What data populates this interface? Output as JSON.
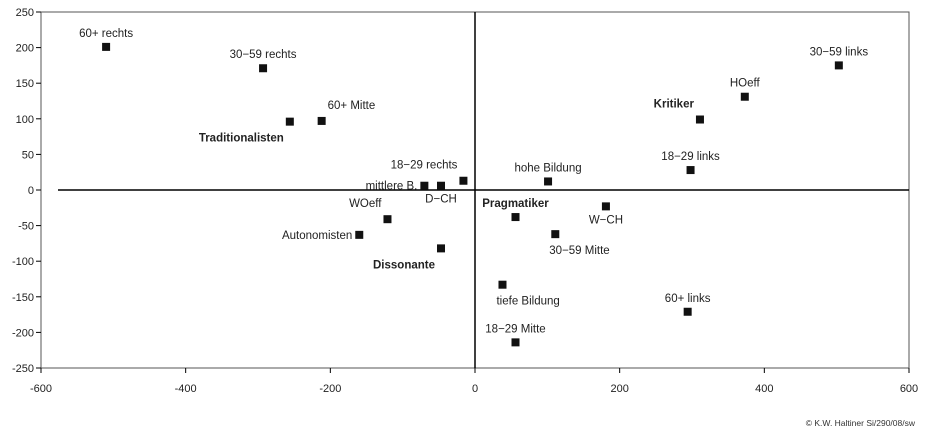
{
  "chart_data": {
    "type": "scatter",
    "title": "",
    "xlabel": "",
    "ylabel": "",
    "xlim": [
      -600,
      600
    ],
    "ylim": [
      -250,
      250
    ],
    "xticks": [
      -600,
      -400,
      -200,
      0,
      200,
      400,
      600
    ],
    "yticks": [
      250,
      200,
      150,
      100,
      50,
      0,
      -50,
      -100,
      -150,
      -200,
      -250
    ],
    "grid": false,
    "points": [
      {
        "label": "60+ rechts",
        "x": -510,
        "y": 201,
        "bold": false,
        "pos": "above"
      },
      {
        "label": "30−59 rechts",
        "x": -293,
        "y": 171,
        "bold": false,
        "pos": "above"
      },
      {
        "label": "60+ Mitte",
        "x": -212,
        "y": 97,
        "bold": false,
        "pos": "above-right"
      },
      {
        "label": "Traditionalisten",
        "x": -256,
        "y": 96,
        "bold": true,
        "pos": "below-left"
      },
      {
        "label": "18−29 rechts",
        "x": -16,
        "y": 13,
        "bold": false,
        "pos": "above-left"
      },
      {
        "label": "mittlere B.",
        "x": -70,
        "y": 6,
        "bold": false,
        "pos": "left"
      },
      {
        "label": "D−CH",
        "x": -47,
        "y": 6,
        "bold": false,
        "pos": "below"
      },
      {
        "label": "WOeff",
        "x": -121,
        "y": -41,
        "bold": false,
        "pos": "above-left"
      },
      {
        "label": "Autonomisten",
        "x": -160,
        "y": -63,
        "bold": false,
        "pos": "left"
      },
      {
        "label": "Dissonante",
        "x": -47,
        "y": -82,
        "bold": true,
        "pos": "below-left"
      },
      {
        "label": "hohe Bildung",
        "x": 101,
        "y": 12,
        "bold": false,
        "pos": "above"
      },
      {
        "label": "Pragmatiker",
        "x": 56,
        "y": -38,
        "bold": true,
        "pos": "above"
      },
      {
        "label": "W−CH",
        "x": 181,
        "y": -23,
        "bold": false,
        "pos": "below"
      },
      {
        "label": "30−59 Mitte",
        "x": 111,
        "y": -62,
        "bold": false,
        "pos": "below-right"
      },
      {
        "label": "tiefe Bildung",
        "x": 38,
        "y": -133,
        "bold": false,
        "pos": "below-right"
      },
      {
        "label": "18−29 Mitte",
        "x": 56,
        "y": -214,
        "bold": false,
        "pos": "above"
      },
      {
        "label": "30−59 links",
        "x": 503,
        "y": 175,
        "bold": false,
        "pos": "above"
      },
      {
        "label": "HOeff",
        "x": 373,
        "y": 131,
        "bold": false,
        "pos": "above"
      },
      {
        "label": "Kritiker",
        "x": 311,
        "y": 99,
        "bold": true,
        "pos": "above-left"
      },
      {
        "label": "18−29 links",
        "x": 298,
        "y": 28,
        "bold": false,
        "pos": "above"
      },
      {
        "label": "60+ links",
        "x": 294,
        "y": -171,
        "bold": false,
        "pos": "above"
      }
    ]
  },
  "credit": "© K.W. Haltiner Si/290/08/sw",
  "colors": {
    "marker": "#111111",
    "axis": "#000000",
    "frame": "#555555"
  }
}
